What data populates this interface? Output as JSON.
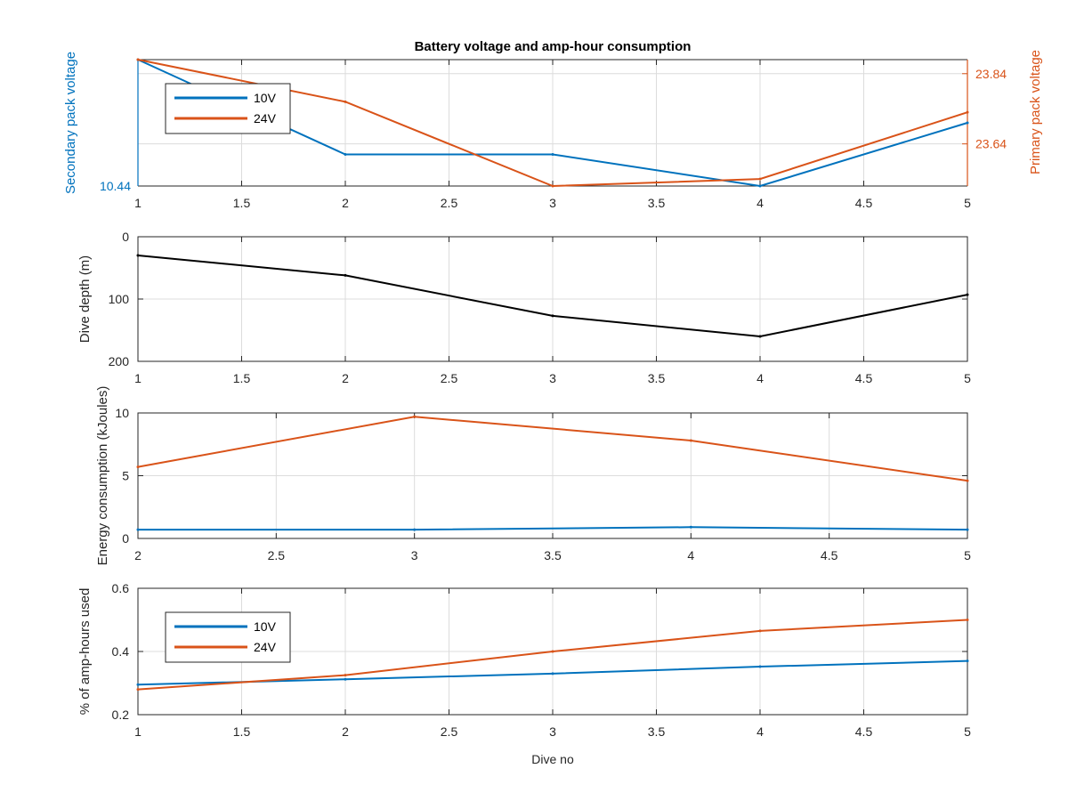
{
  "figure": {
    "title": "Battery voltage and amp-hour consumption",
    "xlabel": "Dive no"
  },
  "colors": {
    "v10": "#0072BD",
    "v24": "#D95319",
    "black": "#000000",
    "axis": "#262626",
    "grid": "#dcdcdc"
  },
  "chart_data": [
    {
      "type": "line",
      "title": "Battery voltage and amp-hour consumption",
      "xlabel": "",
      "ylabel_left": "Secondary pack voltage",
      "ylabel_right": "Primary pack voltage",
      "xlim": [
        1,
        5
      ],
      "xticks": [
        "1",
        "1.5",
        "2",
        "2.5",
        "3",
        "3.5",
        "4",
        "4.5",
        "5"
      ],
      "ylim_left": [
        10.44,
        10.52
      ],
      "yticks_left": [
        "10.44"
      ],
      "ylim_right": [
        23.52,
        23.88
      ],
      "yticks_right": [
        "23.64",
        "23.84"
      ],
      "grid": true,
      "legend": "top-left",
      "series": [
        {
          "name": "10V",
          "axis": "left",
          "x": [
            1,
            2,
            3,
            4,
            5
          ],
          "values": [
            10.52,
            10.46,
            10.46,
            10.44,
            10.48
          ]
        },
        {
          "name": "24V",
          "axis": "right",
          "x": [
            1,
            2,
            3,
            4,
            5
          ],
          "values": [
            23.88,
            23.76,
            23.52,
            23.54,
            23.73
          ]
        }
      ]
    },
    {
      "type": "line",
      "ylabel": "Dive depth (m)",
      "xlim": [
        1,
        5
      ],
      "xticks": [
        "1",
        "1.5",
        "2",
        "2.5",
        "3",
        "3.5",
        "4",
        "4.5",
        "5"
      ],
      "ylim": [
        0,
        200
      ],
      "yticks": [
        "0",
        "100",
        "200"
      ],
      "y_reversed": true,
      "grid": true,
      "series": [
        {
          "x": [
            1,
            2,
            3,
            4,
            5
          ],
          "values": [
            30,
            62,
            127,
            160,
            93
          ]
        }
      ]
    },
    {
      "type": "line",
      "ylabel": "Energy consumption (kJoules)",
      "xlim": [
        2,
        5
      ],
      "xticks": [
        "2",
        "2.5",
        "3",
        "3.5",
        "4",
        "4.5",
        "5"
      ],
      "ylim": [
        0,
        10
      ],
      "yticks": [
        "0",
        "5",
        "10"
      ],
      "grid": true,
      "series": [
        {
          "name": "10V",
          "x": [
            2,
            3,
            4,
            5
          ],
          "values": [
            0.7,
            0.7,
            0.9,
            0.7
          ]
        },
        {
          "name": "24V",
          "x": [
            2,
            3,
            4,
            5
          ],
          "values": [
            5.7,
            9.7,
            7.8,
            4.6
          ]
        }
      ]
    },
    {
      "type": "line",
      "ylabel": "% of amp-hours used",
      "xlabel": "Dive no",
      "xlim": [
        1,
        5
      ],
      "xticks": [
        "1",
        "1.5",
        "2",
        "2.5",
        "3",
        "3.5",
        "4",
        "4.5",
        "5"
      ],
      "ylim": [
        0.2,
        0.6
      ],
      "yticks": [
        "0.2",
        "0.4",
        "0.6"
      ],
      "grid": true,
      "legend": "top-left",
      "series": [
        {
          "name": "10V",
          "x": [
            1,
            2,
            3,
            4,
            5
          ],
          "values": [
            0.295,
            0.312,
            0.33,
            0.352,
            0.37
          ]
        },
        {
          "name": "24V",
          "x": [
            1,
            2,
            3,
            4,
            5
          ],
          "values": [
            0.28,
            0.325,
            0.4,
            0.465,
            0.5
          ]
        }
      ]
    }
  ]
}
